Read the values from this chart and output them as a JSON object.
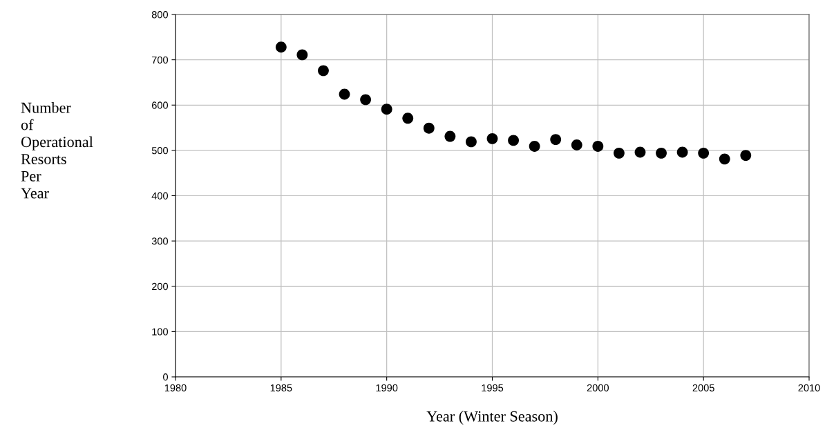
{
  "chart_data": {
    "type": "scatter",
    "xlabel": "Year (Winter Season)",
    "ylabel": "Number\nof\nOperational\nResorts\nPer\nYear",
    "x": [
      1985,
      1986,
      1987,
      1988,
      1989,
      1990,
      1991,
      1992,
      1993,
      1994,
      1995,
      1996,
      1997,
      1998,
      1999,
      2000,
      2001,
      2002,
      2003,
      2004,
      2005,
      2006,
      2007
    ],
    "series": [
      {
        "color": "#000000",
        "values": [
          728,
          711,
          676,
          624,
          612,
          591,
          571,
          549,
          531,
          519,
          526,
          522,
          509,
          524,
          512,
          509,
          494,
          496,
          494,
          496,
          494,
          481,
          489
        ]
      }
    ],
    "xlim": [
      1980,
      2010
    ],
    "xticks": [
      1980,
      1985,
      1990,
      1995,
      2000,
      2005,
      2010
    ],
    "ylim": [
      0,
      800
    ],
    "yticks": [
      0,
      100,
      200,
      300,
      400,
      500,
      600,
      700,
      800
    ],
    "grid": true,
    "marker": "circle",
    "legend": false
  }
}
